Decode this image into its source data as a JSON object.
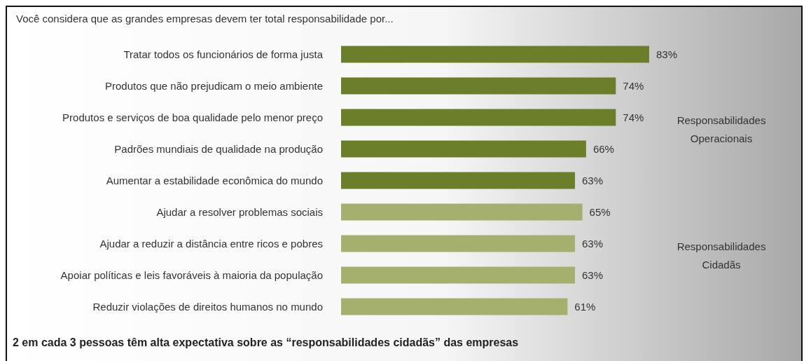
{
  "chart_data": {
    "type": "bar",
    "orientation": "horizontal",
    "title": "Você considera que as grandes empresas devem ter total responsabilidade por...",
    "categories": [
      "Tratar todos os funcionários de forma justa",
      "Produtos que não prejudicam o meio ambiente",
      "Produtos e serviços de boa qualidade pelo menor preço",
      "Padrões mundiais de qualidade na produção",
      "Aumentar a estabilidade econômica do mundo",
      "Ajudar a resolver problemas sociais",
      "Ajudar a reduzir a distância entre ricos e pobres",
      "Apoiar políticas e leis favoráveis à maioria da população",
      "Reduzir violações de direitos humanos no mundo"
    ],
    "values": [
      83,
      74,
      74,
      66,
      63,
      65,
      63,
      63,
      61
    ],
    "colors": [
      "#6b7f2b",
      "#6b7f2b",
      "#6b7f2b",
      "#6b7f2b",
      "#6b7f2b",
      "#a5b06e",
      "#a5b06e",
      "#a5b06e",
      "#a5b06e"
    ],
    "value_labels": [
      "83%",
      "74%",
      "74%",
      "66%",
      "63%",
      "65%",
      "63%",
      "63%",
      "61%"
    ],
    "annotations": [
      "Responsabilidades\nOperacionais",
      "Responsabilidades\nCidadãs",
      "2 em cada 3 pessoas têm alta expectativa sobre as “responsabilidades cidadãs” das empresas"
    ]
  }
}
